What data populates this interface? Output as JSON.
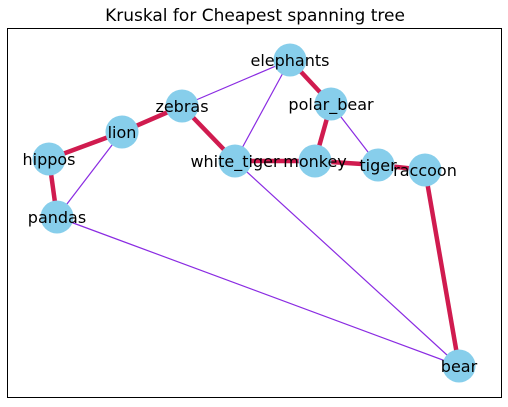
{
  "title": "Kruskal for Cheapest spanning tree",
  "colors": {
    "node_fill": "#87ceeb",
    "tree_edge": "#d01b4f",
    "other_edge": "#8a2be2",
    "frame": "#000000",
    "background": "#ffffff"
  },
  "chart_data": {
    "type": "graph",
    "title": "Kruskal for Cheapest spanning tree",
    "nodes": [
      {
        "id": "elephants",
        "label": "elephants"
      },
      {
        "id": "polar_bear",
        "label": "polar_bear"
      },
      {
        "id": "zebras",
        "label": "zebras"
      },
      {
        "id": "lion",
        "label": "lion"
      },
      {
        "id": "hippos",
        "label": "hippos"
      },
      {
        "id": "white_tiger",
        "label": "white_tiger"
      },
      {
        "id": "monkey",
        "label": "monkey"
      },
      {
        "id": "tiger",
        "label": "tiger"
      },
      {
        "id": "raccoon",
        "label": "raccoon"
      },
      {
        "id": "pandas",
        "label": "pandas"
      },
      {
        "id": "bear",
        "label": "bear"
      }
    ],
    "edges": [
      {
        "source": "zebras",
        "target": "elephants",
        "in_tree": false
      },
      {
        "source": "elephants",
        "target": "white_tiger",
        "in_tree": false
      },
      {
        "source": "lion",
        "target": "pandas",
        "in_tree": false
      },
      {
        "source": "polar_bear",
        "target": "tiger",
        "in_tree": false
      },
      {
        "source": "white_tiger",
        "target": "bear",
        "in_tree": false
      },
      {
        "source": "pandas",
        "target": "bear",
        "in_tree": false
      },
      {
        "source": "elephants",
        "target": "polar_bear",
        "in_tree": true
      },
      {
        "source": "polar_bear",
        "target": "monkey",
        "in_tree": true
      },
      {
        "source": "zebras",
        "target": "lion",
        "in_tree": true
      },
      {
        "source": "lion",
        "target": "hippos",
        "in_tree": true
      },
      {
        "source": "hippos",
        "target": "pandas",
        "in_tree": true
      },
      {
        "source": "zebras",
        "target": "white_tiger",
        "in_tree": true
      },
      {
        "source": "white_tiger",
        "target": "monkey",
        "in_tree": true
      },
      {
        "source": "monkey",
        "target": "tiger",
        "in_tree": true
      },
      {
        "source": "tiger",
        "target": "raccoon",
        "in_tree": true
      },
      {
        "source": "raccoon",
        "target": "bear",
        "in_tree": true
      }
    ]
  }
}
